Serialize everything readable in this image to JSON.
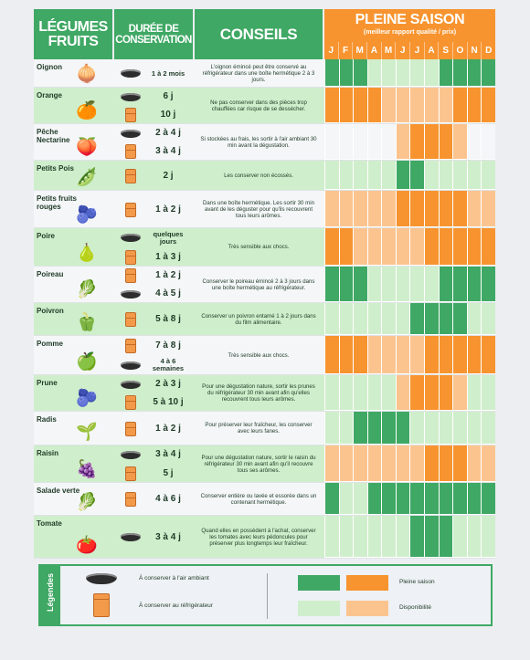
{
  "header": {
    "fruits_line1": "LÉGUMES",
    "fruits_line2": "FRUITS",
    "duree_line1": "DURÉE DE",
    "duree_line2": "CONSERVATION",
    "conseils": "CONSEILS",
    "saison_title": "PLEINE SAISON",
    "saison_sub": "(meilleur rapport qualité / prix)",
    "months": [
      "J",
      "F",
      "M",
      "A",
      "M",
      "J",
      "J",
      "A",
      "S",
      "O",
      "N",
      "D"
    ]
  },
  "rows": [
    {
      "name": [
        "Oignon"
      ],
      "emoji": "🧅",
      "durations": [
        {
          "icon": "bowl-icon",
          "value": "1 à 2 mois"
        }
      ],
      "tip": "L'oignon émincé peut être conservé au réfrigérateur dans une boîte hermétique 2 à 3 jours.",
      "months": "PPPDDDDDPPPP"
    },
    {
      "name": [
        "Orange"
      ],
      "emoji": "🍊",
      "durations": [
        {
          "icon": "bowl-icon",
          "value": "6 j"
        },
        {
          "icon": "fridge-icon",
          "value": "10 j"
        }
      ],
      "tip": "Ne pas conserver dans des pièces trop chauffées car risque de se dessécher.",
      "months": "OOOOQQQQQOOO"
    },
    {
      "name": [
        "Pêche",
        "Nectarine"
      ],
      "emoji": "🍑",
      "durations": [
        {
          "icon": "bowl-icon",
          "value": "2 à 4 j"
        },
        {
          "icon": "fridge-icon",
          "value": "3 à 4 j"
        }
      ],
      "tip": "Si stockées au frais, les sortir à l'air ambiant 30 min avant la dégustation.",
      "months": "NNNNNQOOOQNN"
    },
    {
      "name": [
        "Petits Pois"
      ],
      "emoji": "🫛",
      "durations": [
        {
          "icon": "fridge-icon",
          "value": "2 j"
        }
      ],
      "tip": "Les conserver non écossés.",
      "months": "NNNNDPPDNNNN"
    },
    {
      "name": [
        "Petits fruits",
        "rouges"
      ],
      "emoji": "🫐",
      "durations": [
        {
          "icon": "fridge-icon",
          "value": "1 à 2 j"
        }
      ],
      "tip": "Dans une boîte hermétique. Les sortir 30 min avant de les déguster pour qu'ils recouvrent tous leurs arômes.",
      "months": "QQQQQOOOOOQQ"
    },
    {
      "name": [
        "Poire"
      ],
      "emoji": "🍐",
      "durations": [
        {
          "icon": "bowl-icon",
          "value": "quelques jours"
        },
        {
          "icon": "fridge-icon",
          "value": "1 à 3 j"
        }
      ],
      "tip": "Très sensible aux chocs.",
      "months": "OOQQQQQOOOOO"
    },
    {
      "name": [
        "Poireau"
      ],
      "emoji": "🥬",
      "durations": [
        {
          "icon": "fridge-icon",
          "value": "1 à 2 j"
        },
        {
          "icon": "bowl-icon",
          "value": "4 à 5 j"
        }
      ],
      "tip": "Conserver le poireau émincé 2 à 3 jours dans une boîte hermétique au réfrigérateur.",
      "months": "PPPDDDDDPPPP"
    },
    {
      "name": [
        "Poivron"
      ],
      "emoji": "🫑",
      "durations": [
        {
          "icon": "fridge-icon",
          "value": "5 à 8 j"
        }
      ],
      "tip": "Conserver un poivron entamé 1 à 2 jours dans du film alimentaire.",
      "months": "NNNNNDPPPPDN"
    },
    {
      "name": [
        "Pomme"
      ],
      "emoji": "🍏",
      "durations": [
        {
          "icon": "fridge-icon",
          "value": "7 à 8 j"
        },
        {
          "icon": "bowl-icon",
          "value": "4 à 6 semaines"
        }
      ],
      "tip": "Très sensible aux chocs.",
      "months": "OOOQQQQOOOOO"
    },
    {
      "name": [
        "Prune"
      ],
      "emoji": "🫐",
      "durations": [
        {
          "icon": "bowl-icon",
          "value": "2 à 3 j"
        },
        {
          "icon": "fridge-icon",
          "value": "5 à 10 j"
        }
      ],
      "tip": "Pour une dégustation nature, sortir les prunes du réfrigérateur 30 min avant afin qu'elles recouvrent tous leurs arômes.",
      "months": "NNNNNQOOOQNN"
    },
    {
      "name": [
        "Radis"
      ],
      "emoji": "🌱",
      "durations": [
        {
          "icon": "fridge-icon",
          "value": "1 à 2 j"
        }
      ],
      "tip": "Pour préserver leur fraîcheur, les conserver avec leurs fanes.",
      "months": "DDPPPPDDDDDD"
    },
    {
      "name": [
        "Raisin"
      ],
      "emoji": "🍇",
      "durations": [
        {
          "icon": "bowl-icon",
          "value": "3 à 4 j"
        },
        {
          "icon": "fridge-icon",
          "value": "5 j"
        }
      ],
      "tip": "Pour une dégustation nature, sortir le raisin du réfrigérateur 30 min avant afin qu'il recouvre tous ses arômes.",
      "months": "QQQQQQQOOOQQ"
    },
    {
      "name": [
        "Salade verte"
      ],
      "emoji": "🥬",
      "durations": [
        {
          "icon": "fridge-icon",
          "value": "4 à 6 j"
        }
      ],
      "tip": "Conserver entière ou lavée et essorée dans un contenant hermétique.",
      "months": "PDDPPPPPPPPP"
    },
    {
      "name": [
        "Tomate"
      ],
      "emoji": "🍅",
      "durations": [
        {
          "icon": "bowl-icon",
          "value": "3 à 4 j"
        }
      ],
      "tip": "Quand elles en possèdent à l'achat, conserver les tomates avec leurs pédoncules pour préserver plus longtemps leur fraîcheur.",
      "months": "NNNNDDPPPDNN"
    }
  ],
  "legend": {
    "title": "Légendes",
    "ambient": "À conserver à l'air ambiant",
    "fridge": "À conserver au réfrigérateur",
    "pleine_saison": "Pleine saison",
    "disponibilite": "Disponibilité",
    "colors": {
      "green_full": "#3fa864",
      "green_light": "#cfeecb",
      "orange_full": "#f7942f",
      "orange_light": "#fbc48f"
    }
  }
}
